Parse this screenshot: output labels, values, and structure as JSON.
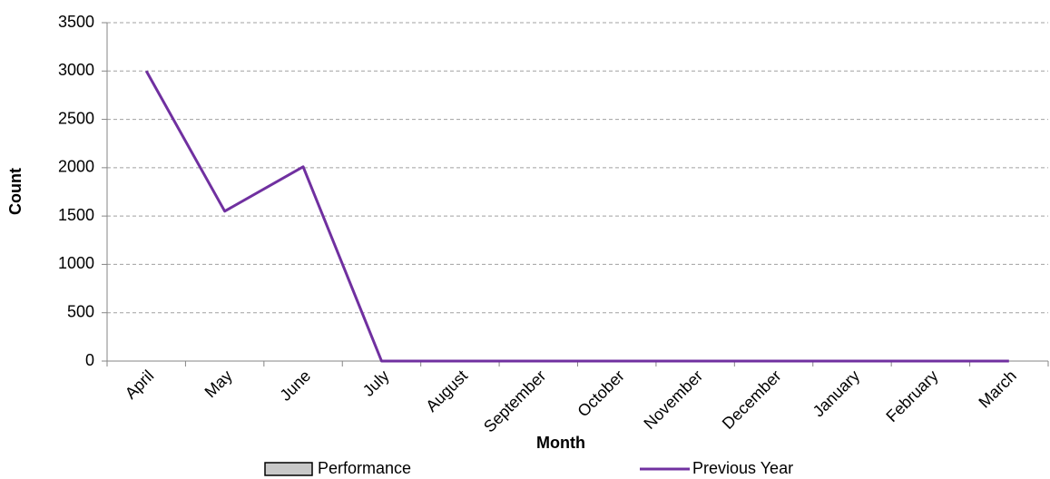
{
  "chart_data": {
    "type": "line",
    "xlabel": "Month",
    "ylabel": "Count",
    "categories": [
      "April",
      "May",
      "June",
      "July",
      "August",
      "September",
      "October",
      "November",
      "December",
      "January",
      "February",
      "March"
    ],
    "series": [
      {
        "name": "Performance",
        "type": "bar",
        "color": "#c8c8c8",
        "values": [
          null,
          null,
          null,
          null,
          null,
          null,
          null,
          null,
          null,
          null,
          null,
          null
        ]
      },
      {
        "name": "Previous Year",
        "type": "line",
        "color": "#7030a0",
        "values": [
          3000,
          1550,
          2010,
          0,
          0,
          0,
          0,
          0,
          0,
          0,
          0,
          0
        ]
      }
    ],
    "ylim": [
      0,
      3500
    ],
    "yticks": [
      0,
      500,
      1000,
      1500,
      2000,
      2500,
      3000,
      3500
    ],
    "grid": true,
    "legend": "bottom"
  }
}
